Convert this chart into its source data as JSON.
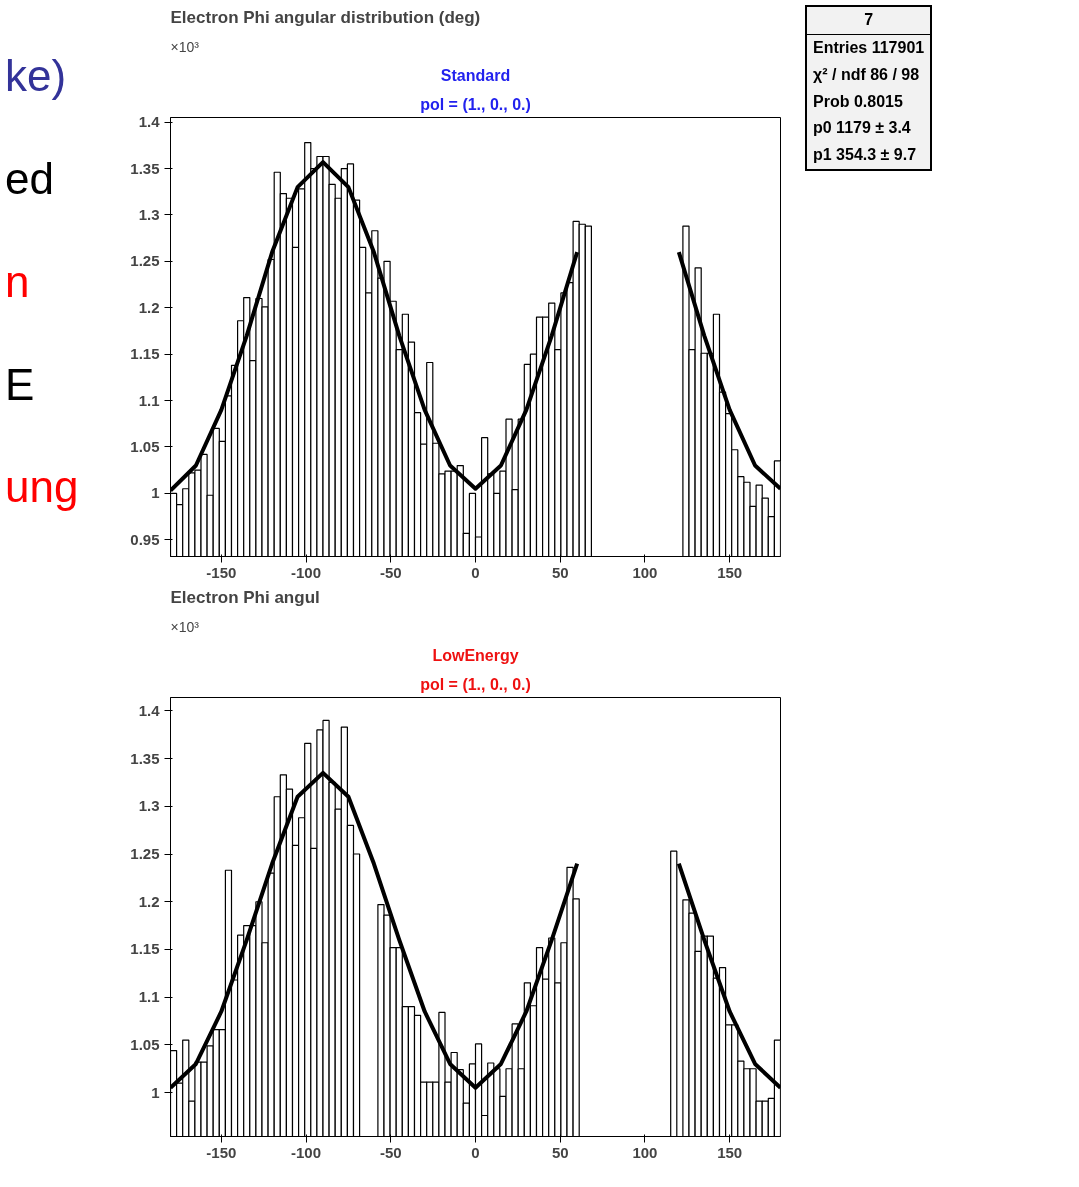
{
  "chart_data": [
    {
      "type": "histogram",
      "title": "Electron Phi angular distribution (deg)",
      "color": "#000000",
      "bins": [
        -180,
        -176.4,
        -172.8,
        -169.2,
        -165.6,
        -162,
        -158.4,
        -154.8,
        -151.2,
        -147.6,
        -144,
        -140.4,
        -136.8,
        -133.2,
        -129.6,
        -126,
        -122.4,
        -118.8,
        -115.2,
        -111.6,
        -108,
        -104.4,
        -100.8,
        -97.2,
        -93.6,
        -90,
        -86.4,
        -82.8,
        -79.2,
        -75.6,
        -72,
        -68.4,
        -64.8,
        -61.2,
        -57.6,
        -54,
        -50.4,
        -46.8,
        -43.2,
        -39.6,
        -36,
        -32.4,
        -28.8,
        -25.2,
        -21.6,
        -18,
        -14.4,
        -10.8,
        -7.2,
        -3.6,
        0,
        3.6,
        7.2,
        10.8,
        14.4,
        18,
        21.6,
        25.2,
        28.8,
        32.4,
        36,
        39.6,
        43.2,
        46.8,
        50.4,
        54,
        57.6,
        61.2,
        64.8,
        68.4,
        72,
        75.6,
        79.2,
        82.8,
        86.4,
        90,
        93.6,
        97.2,
        100.8,
        104.4,
        108,
        111.6,
        115.2,
        118.8,
        122.4,
        126,
        129.6,
        133.2,
        136.8,
        140.4,
        144,
        147.6,
        151.2,
        154.8,
        158.4,
        162,
        165.6,
        169.2,
        172.8,
        176.4,
        180
      ],
      "values": [
        1.0,
        0.988,
        1.005,
        1.022,
        1.025,
        1.042,
        0.998,
        1.07,
        1.056,
        1.105,
        1.138,
        1.186,
        1.211,
        1.143,
        1.21,
        1.201,
        1.252,
        1.346,
        1.323,
        1.318,
        1.265,
        1.328,
        1.378,
        1.35,
        1.363,
        1.363,
        1.333,
        1.318,
        1.35,
        1.355,
        1.316,
        1.265,
        1.216,
        1.283,
        1.232,
        1.25,
        1.207,
        1.155,
        1.193,
        1.163,
        1.087,
        1.053,
        1.141,
        1.054,
        1.021,
        1.024,
        1.024,
        1.03,
        0.957,
        1.0,
        0.953,
        1.06,
        1.021,
        1.0,
        1.024,
        1.08,
        1.004,
        1.08,
        1.139,
        1.15,
        1.19,
        1.19,
        1.205,
        1.155,
        1.216,
        1.227,
        1.293,
        1.29,
        1.288,
        null,
        null,
        null,
        null,
        null,
        null,
        null,
        null,
        null,
        null,
        null,
        null,
        null,
        null,
        null,
        1.288,
        1.155,
        1.243,
        1.151,
        1.151,
        1.193,
        1.109,
        1.086,
        1.047,
        1.018,
        1.012,
        0.986,
        1.009,
        0.995,
        0.975,
        1.035
      ],
      "series": [
        {
          "type": "line",
          "color": "#000000",
          "x": [
            -180,
            -165,
            -150,
            -135,
            -120,
            -105,
            -90,
            -75,
            -60,
            -45,
            -30,
            -15,
            0,
            15,
            30,
            45,
            60,
            75,
            90,
            105,
            120,
            135,
            150,
            165,
            180
          ],
          "values": [
            1.003,
            1.03,
            1.09,
            1.17,
            1.26,
            1.33,
            1.357,
            1.33,
            1.26,
            1.17,
            1.09,
            1.03,
            1.005,
            1.03,
            1.09,
            1.17,
            1.26,
            null,
            null,
            null,
            1.26,
            1.17,
            1.09,
            1.03,
            1.005
          ]
        }
      ],
      "xlim": [
        -180,
        180
      ],
      "ylim": [
        0.932,
        1.405
      ],
      "xticks": [
        -150,
        -100,
        -50,
        0,
        50,
        100,
        150
      ],
      "yticks": [
        0.95,
        1,
        1.05,
        1.1,
        1.15,
        1.2,
        1.25,
        1.3,
        1.35,
        1.4
      ],
      "annotations": [
        "×10³",
        "Standard",
        "pol = (1., 0., 0.)",
        "7",
        "Entries   117901",
        "χ² / ndf   86 / 98",
        "Prob   0.8015",
        "p0   1179 ± 3.4",
        "p1   354.3 ± 9.7"
      ]
    },
    {
      "type": "histogram",
      "title": "Electron Phi angul",
      "color": "#000000",
      "bins": [
        -180,
        -176.4,
        -172.8,
        -169.2,
        -165.6,
        -162,
        -158.4,
        -154.8,
        -151.2,
        -147.6,
        -144,
        -140.4,
        -136.8,
        -133.2,
        -129.6,
        -126,
        -122.4,
        -118.8,
        -115.2,
        -111.6,
        -108,
        -104.4,
        -100.8,
        -97.2,
        -93.6,
        -90,
        -86.4,
        -82.8,
        -79.2,
        -75.6,
        -72,
        -68.4,
        -64.8,
        -61.2,
        -57.6,
        -54,
        -50.4,
        -46.8,
        -43.2,
        -39.6,
        -36,
        -32.4,
        -28.8,
        -25.2,
        -21.6,
        -18,
        -14.4,
        -10.8,
        -7.2,
        -3.6,
        0,
        3.6,
        7.2,
        10.8,
        14.4,
        18,
        21.6,
        25.2,
        28.8,
        32.4,
        36,
        39.6,
        43.2,
        46.8,
        50.4,
        54,
        57.6,
        61.2,
        64.8,
        68.4,
        72,
        75.6,
        79.2,
        82.8,
        86.4,
        90,
        93.6,
        97.2,
        100.8,
        104.4,
        108,
        111.6,
        115.2,
        118.8,
        122.4,
        126,
        129.6,
        133.2,
        136.8,
        140.4,
        144,
        147.6,
        151.2,
        154.8,
        158.4,
        162,
        165.6,
        169.2,
        172.8,
        176.4,
        180
      ],
      "values": [
        1.044,
        1.01,
        1.055,
        0.991,
        1.032,
        1.032,
        1.049,
        1.066,
        1.066,
        1.233,
        1.118,
        1.165,
        1.175,
        1.175,
        1.2,
        1.157,
        1.23,
        1.31,
        1.333,
        1.318,
        1.259,
        1.288,
        1.366,
        1.256,
        1.38,
        1.39,
        1.325,
        1.297,
        1.383,
        1.28,
        1.25,
        null,
        null,
        null,
        1.197,
        1.186,
        1.152,
        1.152,
        1.09,
        1.09,
        1.081,
        1.011,
        1.011,
        1.011,
        1.084,
        1.011,
        1.042,
        1.024,
        0.989,
        1.03,
        1.051,
        0.976,
        1.031,
        1.025,
        0.996,
        1.025,
        1.072,
        1.025,
        1.115,
        1.091,
        1.152,
        1.119,
        1.162,
        1.115,
        1.157,
        1.236,
        1.203,
        null,
        null,
        null,
        null,
        null,
        null,
        null,
        null,
        null,
        null,
        null,
        null,
        null,
        null,
        null,
        1.253,
        null,
        1.202,
        1.188,
        1.148,
        1.164,
        1.164,
        1.12,
        1.131,
        1.071,
        1.071,
        1.033,
        1.025,
        1.025,
        0.991,
        0.991,
        0.994,
        1.055
      ],
      "series": [
        {
          "type": "line",
          "color": "#000000",
          "x": [
            -180,
            -165,
            -150,
            -135,
            -120,
            -105,
            -90,
            -75,
            -60,
            -45,
            -30,
            -15,
            0,
            15,
            30,
            45,
            60,
            75,
            90,
            105,
            120,
            135,
            150,
            165,
            180
          ],
          "values": [
            1.005,
            1.03,
            1.085,
            1.16,
            1.24,
            1.31,
            1.335,
            1.31,
            1.24,
            1.16,
            1.085,
            1.03,
            1.005,
            1.03,
            1.085,
            1.16,
            1.24,
            null,
            null,
            null,
            1.24,
            1.16,
            1.085,
            1.03,
            1.005
          ]
        }
      ],
      "xlim": [
        -180,
        180
      ],
      "ylim": [
        0.954,
        1.414
      ],
      "xticks": [
        -150,
        -100,
        -50,
        0,
        50,
        100,
        150
      ],
      "yticks": [
        1,
        1.05,
        1.1,
        1.15,
        1.2,
        1.25,
        1.3,
        1.35,
        1.4
      ],
      "annotations": [
        "×10³",
        "LowEnergy",
        "pol = (1., 0., 0.)"
      ]
    },
    {
      "type": "other",
      "annotations": [
        "ke)",
        "ed",
        "n",
        "E",
        "ung"
      ]
    }
  ]
}
